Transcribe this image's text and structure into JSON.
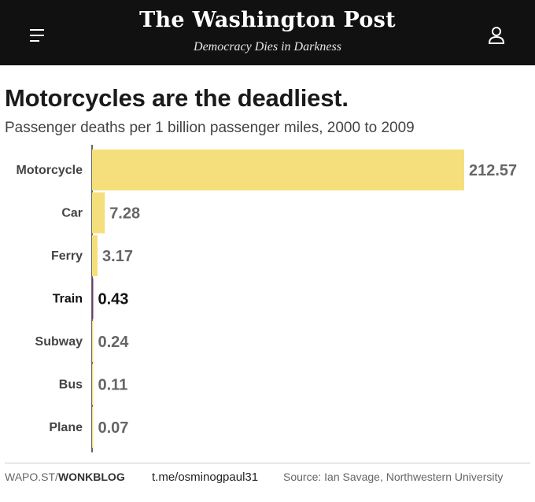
{
  "header": {
    "masthead": "The Washington Post",
    "tagline": "Democracy Dies in Darkness",
    "menu_icon": "hamburger-menu-icon",
    "account_icon": "user-account-icon",
    "background_color": "#111111"
  },
  "chart_data": {
    "type": "bar",
    "orientation": "horizontal",
    "title": "Motorcycles are the deadliest.",
    "subtitle": "Passenger deaths per 1 billion passenger miles, 2000 to 2009",
    "categories": [
      "Motorcycle",
      "Car",
      "Ferry",
      "Train",
      "Subway",
      "Bus",
      "Plane"
    ],
    "values": [
      212.57,
      7.28,
      3.17,
      0.43,
      0.24,
      0.11,
      0.07
    ],
    "value_labels": [
      "212.57",
      "7.28",
      "3.17",
      "0.43",
      "0.24",
      "0.11",
      "0.07"
    ],
    "highlight": "Train",
    "xlim": [
      0,
      212.57
    ],
    "grid": false,
    "bar_color": "#f5df7c",
    "highlight_color": "#6b3a6e",
    "label_color": "#666666",
    "highlight_label_color": "#111111"
  },
  "footer": {
    "site_prefix": "WAPO.ST/",
    "site_section": "WONKBLOG",
    "handle": "t.me/osminogpaul31",
    "source": "Source: Ian Savage, Northwestern University"
  }
}
